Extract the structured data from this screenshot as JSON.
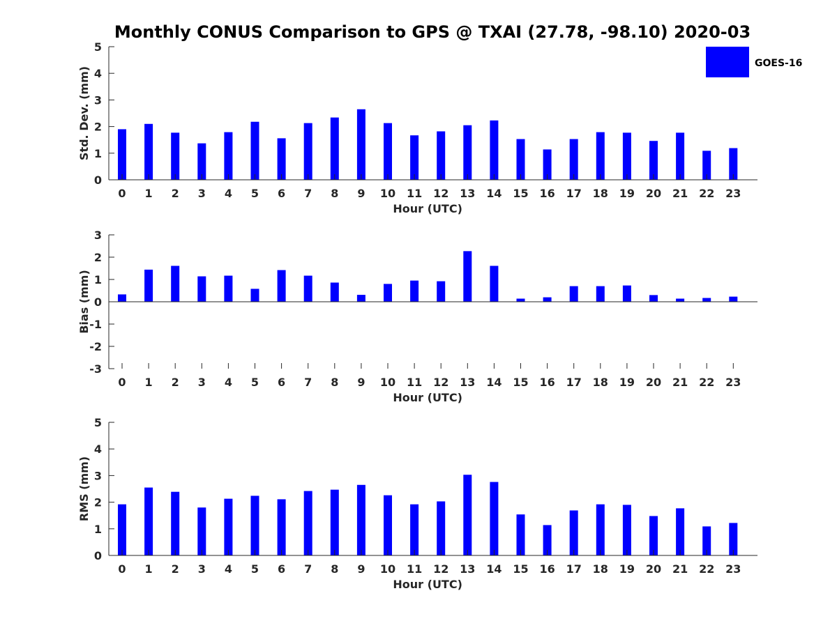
{
  "figure_title": "Monthly CONUS Comparison to GPS @ TXAI (27.78, -98.10) 2020-03",
  "legend": {
    "label": "GOES-16",
    "placement": "top-right"
  },
  "colors": {
    "bar": "#0000ff",
    "axis": "#262626"
  },
  "chart_data": [
    {
      "type": "bar",
      "title": "",
      "xlabel": "Hour (UTC)",
      "ylabel": "Std. Dev. (mm)",
      "ylim": [
        0,
        5
      ],
      "yticks": [
        0,
        1,
        2,
        3,
        4,
        5
      ],
      "grid": false,
      "categories": [
        "0",
        "1",
        "2",
        "3",
        "4",
        "5",
        "6",
        "7",
        "8",
        "9",
        "10",
        "11",
        "12",
        "13",
        "14",
        "15",
        "16",
        "17",
        "18",
        "19",
        "20",
        "21",
        "22",
        "23"
      ],
      "series": [
        {
          "name": "GOES-16",
          "values": [
            1.9,
            2.1,
            1.77,
            1.37,
            1.79,
            2.18,
            1.56,
            2.13,
            2.34,
            2.65,
            2.13,
            1.67,
            1.82,
            2.05,
            2.23,
            1.53,
            1.14,
            1.53,
            1.79,
            1.77,
            1.46,
            1.77,
            1.09,
            1.19
          ]
        }
      ]
    },
    {
      "type": "bar",
      "title": "",
      "xlabel": "Hour (UTC)",
      "ylabel": "Bias (mm)",
      "ylim": [
        -3,
        3
      ],
      "yticks": [
        -3,
        -2,
        -1,
        0,
        1,
        2,
        3
      ],
      "grid": false,
      "categories": [
        "0",
        "1",
        "2",
        "3",
        "4",
        "5",
        "6",
        "7",
        "8",
        "9",
        "10",
        "11",
        "12",
        "13",
        "14",
        "15",
        "16",
        "17",
        "18",
        "19",
        "20",
        "21",
        "22",
        "23"
      ],
      "series": [
        {
          "name": "GOES-16",
          "values": [
            0.33,
            1.44,
            1.61,
            1.14,
            1.17,
            0.58,
            1.42,
            1.17,
            0.86,
            0.31,
            0.8,
            0.95,
            0.92,
            2.27,
            1.61,
            0.14,
            0.2,
            0.7,
            0.7,
            0.73,
            0.3,
            0.14,
            0.17,
            0.23
          ]
        }
      ]
    },
    {
      "type": "bar",
      "title": "",
      "xlabel": "Hour (UTC)",
      "ylabel": "RMS (mm)",
      "ylim": [
        0,
        5
      ],
      "yticks": [
        0,
        1,
        2,
        3,
        4,
        5
      ],
      "grid": false,
      "categories": [
        "0",
        "1",
        "2",
        "3",
        "4",
        "5",
        "6",
        "7",
        "8",
        "9",
        "10",
        "11",
        "12",
        "13",
        "14",
        "15",
        "16",
        "17",
        "18",
        "19",
        "20",
        "21",
        "22",
        "23"
      ],
      "series": [
        {
          "name": "GOES-16",
          "values": [
            1.92,
            2.55,
            2.39,
            1.8,
            2.13,
            2.24,
            2.11,
            2.42,
            2.47,
            2.65,
            2.26,
            1.92,
            2.03,
            3.03,
            2.76,
            1.54,
            1.14,
            1.69,
            1.92,
            1.9,
            1.48,
            1.77,
            1.09,
            1.22
          ]
        }
      ]
    }
  ]
}
